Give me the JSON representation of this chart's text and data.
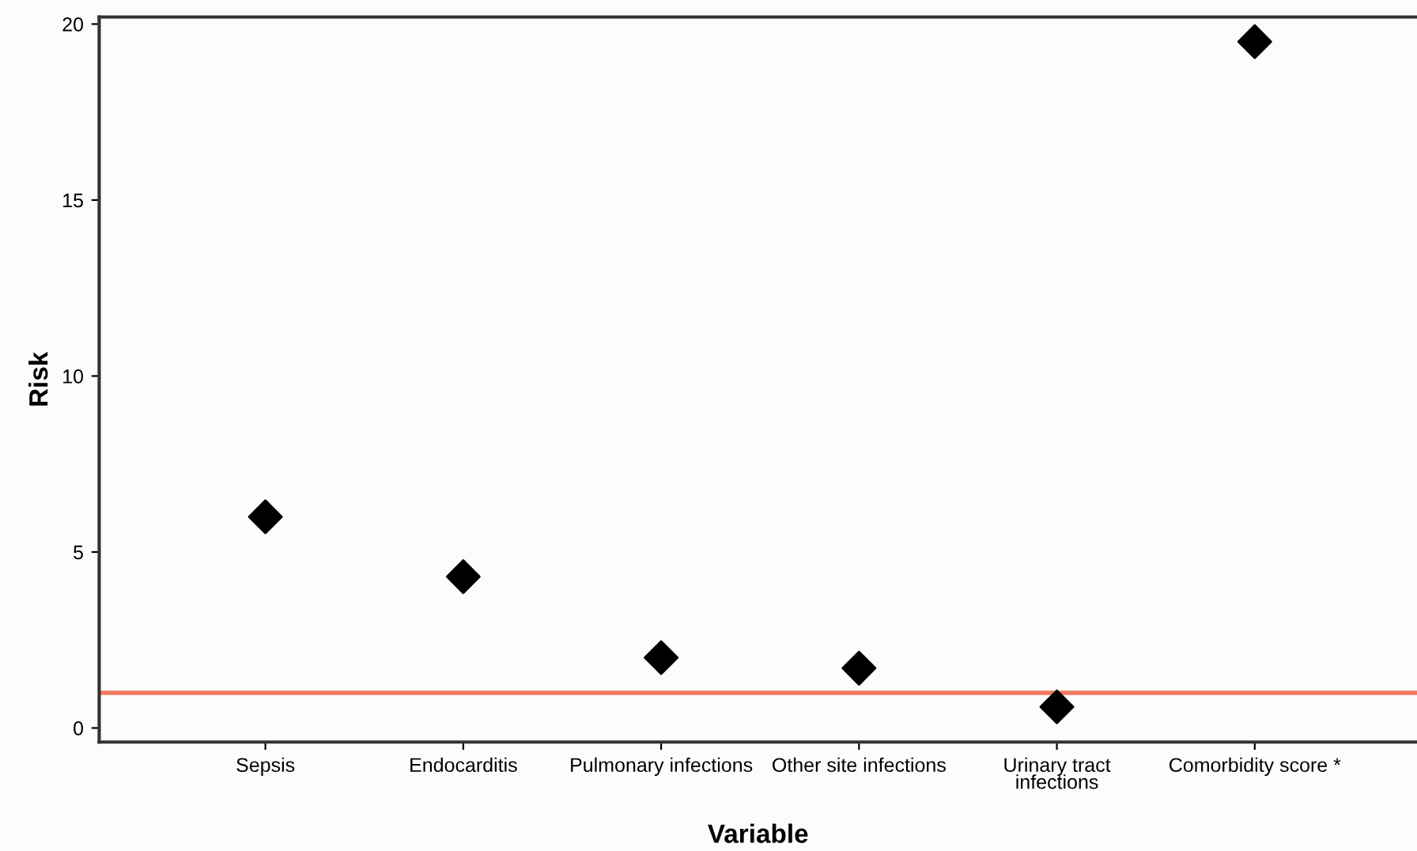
{
  "chart_data": {
    "type": "scatter",
    "xlabel": "Variable",
    "ylabel": "Risk",
    "categories": [
      "Sepsis",
      "Endocarditis",
      "Pulmonary infections",
      "Other site infections",
      "Urinary tract\ninfections",
      "Comorbidity score *"
    ],
    "series": [
      {
        "color": "#000000",
        "values": [
          6.0,
          4.3,
          2.0,
          1.7,
          0.6,
          19.5
        ]
      }
    ],
    "marker": "diamond",
    "ylim": [
      -0.4,
      20.2
    ],
    "yticks": [
      0,
      5,
      10,
      15,
      20
    ],
    "ref_lines": [
      {
        "axis": "y",
        "value": 1,
        "color": "#f07860"
      }
    ],
    "grid": false,
    "legend": false
  }
}
